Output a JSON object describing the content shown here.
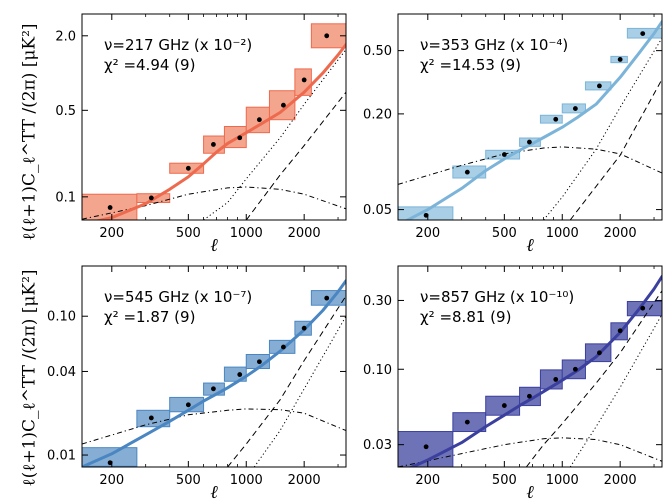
{
  "figure": {
    "ylabel_text": "ℓ(ℓ+1)C_ℓ^TT /(2π)   [μK²]",
    "xlabel_text": "ℓ"
  },
  "chart_data": [
    {
      "type": "scatter",
      "annotation": [
        "ν=217 GHz (x 10⁻²)",
        "χ² =4.94 (9)"
      ],
      "xlabel": "ℓ",
      "xscale": "log",
      "yscale": "log",
      "xlim": [
        140,
        3300
      ],
      "ylim": [
        0.065,
        3.0
      ],
      "xticks": [
        200,
        500,
        1000,
        2000
      ],
      "xtick_labels": [
        "200",
        "500",
        "1000",
        "2000"
      ],
      "yticks": [
        0.1,
        0.5,
        2.0
      ],
      "ytick_labels": [
        "0.1",
        "0.5",
        "2.0"
      ],
      "ytick_side": "left",
      "color": "#ee6a4e",
      "fill": "#f4a58e",
      "bins": [
        {
          "x": 196,
          "y": 0.082,
          "xlo": 140,
          "xhi": 270,
          "ylo": 0.062,
          "yhi": 0.105
        },
        {
          "x": 321,
          "y": 0.098,
          "xlo": 270,
          "xhi": 400,
          "ylo": 0.09,
          "yhi": 0.106
        },
        {
          "x": 500,
          "y": 0.17,
          "xlo": 400,
          "xhi": 600,
          "ylo": 0.155,
          "yhi": 0.187
        },
        {
          "x": 675,
          "y": 0.265,
          "xlo": 600,
          "xhi": 770,
          "ylo": 0.225,
          "yhi": 0.31
        },
        {
          "x": 925,
          "y": 0.3,
          "xlo": 770,
          "xhi": 1000,
          "ylo": 0.25,
          "yhi": 0.37
        },
        {
          "x": 1170,
          "y": 0.42,
          "xlo": 1000,
          "xhi": 1320,
          "ylo": 0.33,
          "yhi": 0.53
        },
        {
          "x": 1560,
          "y": 0.55,
          "xlo": 1320,
          "xhi": 1790,
          "ylo": 0.42,
          "yhi": 0.72
        },
        {
          "x": 2000,
          "y": 0.88,
          "xlo": 1790,
          "xhi": 2180,
          "ylo": 0.66,
          "yhi": 1.08
        },
        {
          "x": 2620,
          "y": 2.0,
          "xlo": 2180,
          "xhi": 3300,
          "ylo": 1.6,
          "yhi": 2.5
        }
      ],
      "model": {
        "x": [
          140,
          200,
          300,
          400,
          500,
          600,
          700,
          800,
          1000,
          1200,
          1500,
          2000,
          2500,
          3000,
          3300
        ],
        "y": [
          0.06,
          0.068,
          0.088,
          0.115,
          0.145,
          0.185,
          0.23,
          0.27,
          0.33,
          0.39,
          0.48,
          0.7,
          1.0,
          1.4,
          1.7
        ]
      },
      "components": {
        "dotted": {
          "x": [
            600,
            800,
            1000,
            1500,
            2000,
            3300
          ],
          "y": [
            0.065,
            0.09,
            0.14,
            0.3,
            0.56,
            1.55
          ]
        },
        "dashed": {
          "x": [
            1000,
            1500,
            2000,
            3300
          ],
          "y": [
            0.065,
            0.15,
            0.26,
            0.7
          ]
        },
        "dashdot": {
          "x": [
            140,
            300,
            500,
            800,
            1000,
            1500,
            2000,
            3300
          ],
          "y": [
            0.066,
            0.085,
            0.105,
            0.118,
            0.12,
            0.115,
            0.105,
            0.08
          ]
        }
      }
    },
    {
      "type": "scatter",
      "annotation": [
        "ν=353 GHz (x 10⁻⁴)",
        "χ² =14.53 (9)"
      ],
      "xlabel": "ℓ",
      "xscale": "log",
      "yscale": "log",
      "xlim": [
        140,
        3300
      ],
      "ylim": [
        0.043,
        0.85
      ],
      "xticks": [
        200,
        500,
        1000,
        2000
      ],
      "xtick_labels": [
        "200",
        "500",
        "1000",
        "2000"
      ],
      "yticks": [
        0.05,
        0.2,
        0.5
      ],
      "ytick_labels": [
        "0.05",
        "0.20",
        "0.50"
      ],
      "ytick_side": "left",
      "color": "#7bb4d8",
      "fill": "#a9cfe7",
      "bins": [
        {
          "x": 196,
          "y": 0.046,
          "xlo": 140,
          "xhi": 270,
          "ylo": 0.042,
          "yhi": 0.052
        },
        {
          "x": 321,
          "y": 0.086,
          "xlo": 270,
          "xhi": 400,
          "ylo": 0.079,
          "yhi": 0.094
        },
        {
          "x": 500,
          "y": 0.111,
          "xlo": 400,
          "xhi": 600,
          "ylo": 0.104,
          "yhi": 0.118
        },
        {
          "x": 675,
          "y": 0.133,
          "xlo": 600,
          "xhi": 770,
          "ylo": 0.125,
          "yhi": 0.141
        },
        {
          "x": 925,
          "y": 0.185,
          "xlo": 770,
          "xhi": 1000,
          "ylo": 0.175,
          "yhi": 0.196
        },
        {
          "x": 1170,
          "y": 0.216,
          "xlo": 1000,
          "xhi": 1320,
          "ylo": 0.203,
          "yhi": 0.231
        },
        {
          "x": 1560,
          "y": 0.3,
          "xlo": 1320,
          "xhi": 1790,
          "ylo": 0.283,
          "yhi": 0.318
        },
        {
          "x": 2000,
          "y": 0.44,
          "xlo": 1790,
          "xhi": 2180,
          "ylo": 0.42,
          "yhi": 0.46
        },
        {
          "x": 2620,
          "y": 0.64,
          "xlo": 2180,
          "xhi": 3300,
          "ylo": 0.6,
          "yhi": 0.69
        }
      ],
      "model": {
        "x": [
          140,
          200,
          300,
          400,
          500,
          600,
          700,
          800,
          1000,
          1200,
          1500,
          2000,
          2500,
          3000,
          3300
        ],
        "y": [
          0.04,
          0.05,
          0.068,
          0.088,
          0.104,
          0.118,
          0.13,
          0.142,
          0.165,
          0.19,
          0.23,
          0.34,
          0.48,
          0.64,
          0.76
        ]
      },
      "components": {
        "dotted": {
          "x": [
            800,
            1000,
            1500,
            2000,
            3300
          ],
          "y": [
            0.043,
            0.06,
            0.12,
            0.22,
            0.6
          ]
        },
        "dashed": {
          "x": [
            1100,
            1500,
            2000,
            3300
          ],
          "y": [
            0.043,
            0.07,
            0.11,
            0.33
          ]
        },
        "dashdot": {
          "x": [
            140,
            300,
            500,
            800,
            1000,
            1500,
            2000,
            3300
          ],
          "y": [
            0.072,
            0.095,
            0.112,
            0.122,
            0.124,
            0.12,
            0.112,
            0.085
          ]
        }
      }
    },
    {
      "type": "scatter",
      "annotation": [
        "ν=545 GHz (x 10⁻⁷)",
        "χ² =1.87 (9)"
      ],
      "xlabel": "ℓ",
      "xscale": "log",
      "yscale": "log",
      "xlim": [
        140,
        3300
      ],
      "ylim": [
        0.0082,
        0.23
      ],
      "xticks": [
        200,
        500,
        1000,
        2000
      ],
      "xtick_labels": [
        "200",
        "500",
        "1000",
        "2000"
      ],
      "yticks": [
        0.01,
        0.04,
        0.1
      ],
      "ytick_labels": [
        "0.01",
        "0.04",
        "0.10"
      ],
      "ytick_side": "left",
      "color": "#4a86c2",
      "fill": "#86aed4",
      "bins": [
        {
          "x": 196,
          "y": 0.0088,
          "xlo": 140,
          "xhi": 270,
          "ylo": 0.0083,
          "yhi": 0.0113
        },
        {
          "x": 321,
          "y": 0.0185,
          "xlo": 270,
          "xhi": 400,
          "ylo": 0.016,
          "yhi": 0.021
        },
        {
          "x": 500,
          "y": 0.023,
          "xlo": 400,
          "xhi": 600,
          "ylo": 0.0205,
          "yhi": 0.026
        },
        {
          "x": 675,
          "y": 0.03,
          "xlo": 600,
          "xhi": 770,
          "ylo": 0.027,
          "yhi": 0.033
        },
        {
          "x": 925,
          "y": 0.038,
          "xlo": 770,
          "xhi": 1000,
          "ylo": 0.034,
          "yhi": 0.043
        },
        {
          "x": 1170,
          "y": 0.047,
          "xlo": 1000,
          "xhi": 1320,
          "ylo": 0.042,
          "yhi": 0.053
        },
        {
          "x": 1560,
          "y": 0.06,
          "xlo": 1320,
          "xhi": 1790,
          "ylo": 0.054,
          "yhi": 0.067
        },
        {
          "x": 2000,
          "y": 0.082,
          "xlo": 1790,
          "xhi": 2180,
          "ylo": 0.073,
          "yhi": 0.092
        },
        {
          "x": 2620,
          "y": 0.135,
          "xlo": 2180,
          "xhi": 3300,
          "ylo": 0.12,
          "yhi": 0.153
        }
      ],
      "model": {
        "x": [
          140,
          200,
          300,
          400,
          500,
          600,
          700,
          800,
          1000,
          1200,
          1500,
          2000,
          2500,
          3000,
          3300
        ],
        "y": [
          0.0082,
          0.0102,
          0.014,
          0.0175,
          0.021,
          0.0245,
          0.0275,
          0.0305,
          0.037,
          0.044,
          0.056,
          0.08,
          0.11,
          0.15,
          0.18
        ]
      },
      "components": {
        "dotted": {
          "x": [
            1100,
            1500,
            2000,
            3300
          ],
          "y": [
            0.0082,
            0.015,
            0.03,
            0.1
          ]
        },
        "dashed": {
          "x": [
            800,
            1000,
            1500,
            2000,
            3300
          ],
          "y": [
            0.0082,
            0.012,
            0.025,
            0.048,
            0.14
          ]
        },
        "dashdot": {
          "x": [
            140,
            300,
            500,
            800,
            1000,
            1500,
            2000,
            3300
          ],
          "y": [
            0.012,
            0.0165,
            0.0195,
            0.021,
            0.0215,
            0.0212,
            0.02,
            0.015
          ]
        }
      }
    },
    {
      "type": "scatter",
      "annotation": [
        "ν=857 GHz (x 10⁻¹⁰)",
        "χ² =8.81 (9)"
      ],
      "xlabel": "ℓ",
      "xscale": "log",
      "yscale": "log",
      "xlim": [
        140,
        3300
      ],
      "ylim": [
        0.021,
        0.52
      ],
      "xticks": [
        200,
        500,
        1000,
        2000
      ],
      "xtick_labels": [
        "200",
        "500",
        "1000",
        "2000"
      ],
      "yticks": [
        0.03,
        0.1,
        0.3
      ],
      "ytick_labels": [
        "0.03",
        "0.10",
        "0.30"
      ],
      "ytick_side": "left",
      "color": "#3b3f9e",
      "fill": "#6e73b8",
      "bins": [
        {
          "x": 196,
          "y": 0.029,
          "xlo": 140,
          "xhi": 270,
          "ylo": 0.021,
          "yhi": 0.037
        },
        {
          "x": 321,
          "y": 0.043,
          "xlo": 270,
          "xhi": 400,
          "ylo": 0.037,
          "yhi": 0.05
        },
        {
          "x": 500,
          "y": 0.056,
          "xlo": 400,
          "xhi": 600,
          "ylo": 0.048,
          "yhi": 0.065
        },
        {
          "x": 675,
          "y": 0.065,
          "xlo": 600,
          "xhi": 770,
          "ylo": 0.056,
          "yhi": 0.075
        },
        {
          "x": 925,
          "y": 0.085,
          "xlo": 770,
          "xhi": 1000,
          "ylo": 0.073,
          "yhi": 0.099
        },
        {
          "x": 1170,
          "y": 0.1,
          "xlo": 1000,
          "xhi": 1320,
          "ylo": 0.086,
          "yhi": 0.116
        },
        {
          "x": 1560,
          "y": 0.13,
          "xlo": 1320,
          "xhi": 1790,
          "ylo": 0.113,
          "yhi": 0.15
        },
        {
          "x": 2000,
          "y": 0.185,
          "xlo": 1790,
          "xhi": 2180,
          "ylo": 0.16,
          "yhi": 0.21
        },
        {
          "x": 2620,
          "y": 0.265,
          "xlo": 2180,
          "xhi": 3300,
          "ylo": 0.235,
          "yhi": 0.295
        }
      ],
      "model": {
        "x": [
          140,
          200,
          300,
          400,
          500,
          600,
          700,
          800,
          1000,
          1200,
          1500,
          2000,
          2500,
          3000,
          3300
        ],
        "y": [
          0.019,
          0.0235,
          0.031,
          0.04,
          0.048,
          0.056,
          0.063,
          0.07,
          0.084,
          0.098,
          0.122,
          0.18,
          0.26,
          0.36,
          0.44
        ]
      },
      "components": {
        "dotted": {
          "x": [
            1100,
            1500,
            2000,
            3300
          ],
          "y": [
            0.021,
            0.04,
            0.075,
            0.24
          ]
        },
        "dashed": {
          "x": [
            650,
            800,
            1000,
            1500,
            2000,
            3300
          ],
          "y": [
            0.021,
            0.03,
            0.042,
            0.08,
            0.13,
            0.35
          ]
        },
        "dashdot": {
          "x": [
            140,
            300,
            500,
            800,
            1000,
            1500,
            2000,
            3300
          ],
          "y": [
            0.021,
            0.026,
            0.03,
            0.033,
            0.0335,
            0.0325,
            0.03,
            0.023
          ]
        }
      }
    }
  ]
}
